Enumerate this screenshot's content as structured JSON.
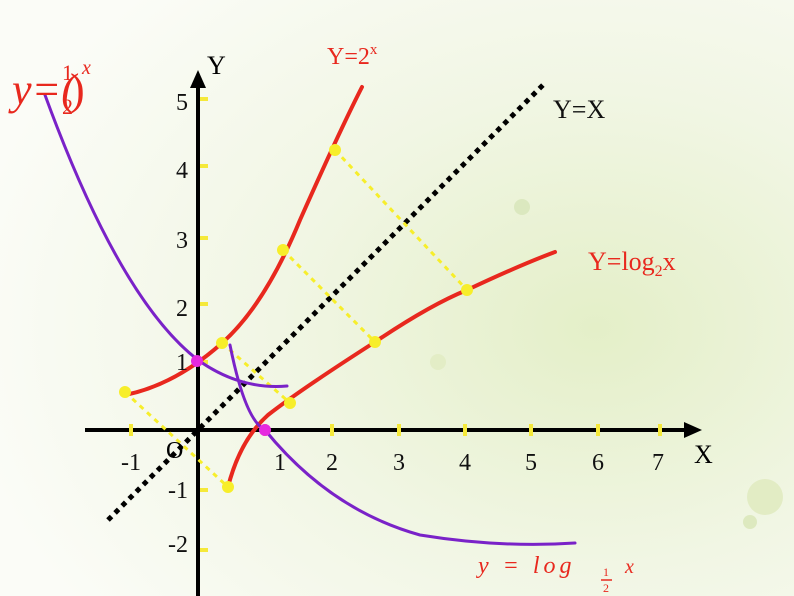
{
  "axes": {
    "x_label": "X",
    "y_label": "Y",
    "origin": "O",
    "x_ticks": [
      "-1",
      "1",
      "2",
      "3",
      "4",
      "5",
      "6",
      "7"
    ],
    "y_ticks": [
      "5",
      "4",
      "3",
      "2",
      "1",
      "-1",
      "-2"
    ]
  },
  "labels": {
    "exp2": {
      "main": "Y=2",
      "sup": "x"
    },
    "identity": {
      "main": "Y=X"
    },
    "log2": {
      "main": "Y=log",
      "sub": "2",
      "tail": "x"
    },
    "loghalf": {
      "main": "y = log",
      "num": "1",
      "den": "2",
      "tail": "x"
    },
    "exphalf": {
      "main": "y=(",
      "num": "1",
      "den": "2",
      "close": ")",
      "sup": "x"
    }
  }
}
